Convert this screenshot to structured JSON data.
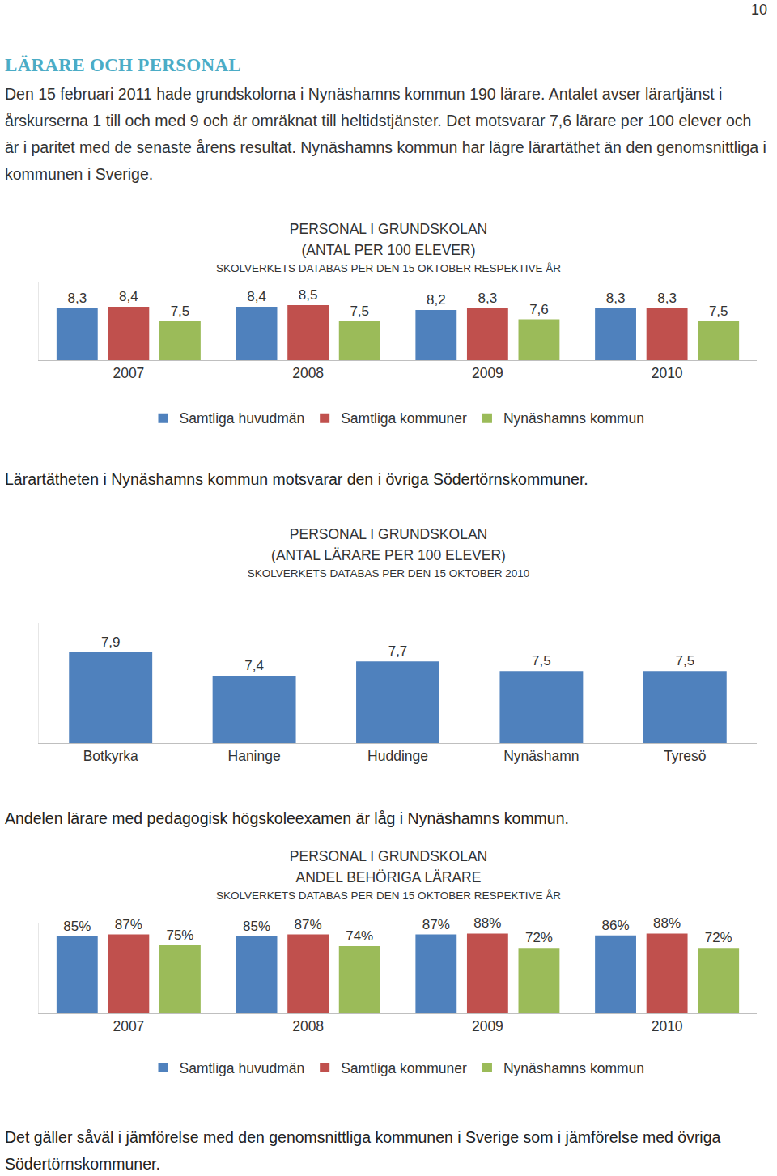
{
  "page_number": "10",
  "heading": "LÄRARE OCH PERSONAL",
  "intro": "Den 15 februari 2011 hade grundskolorna i Nynäshamns kommun 190 lärare. Antalet avser lärartjänst i årskurserna 1 till och med 9 och är omräknat till heltidstjänster. Det motsvarar 7,6 lärare per 100 elever och är i paritet med de senaste årens resultat. Nynäshamns kommun har lägre lärartäthet än den genomsnittliga i kommunen i Sverige.",
  "captions": [
    "Lärartätheten i Nynäshamns kommun motsvarar den i övriga Södertörnskommuner.",
    "Andelen lärare med pedagogisk högskoleexamen är låg i Nynäshamns kommun.",
    "Det gäller såväl i jämförelse med den genomsnittliga kommunen i Sverige som i jämförelse med övriga Södertörnskommuner."
  ],
  "chart_data": [
    {
      "type": "bar",
      "title": "PERSONAL I GRUNDSKOLAN",
      "subtitle": "(ANTAL PER 100 ELEVER)",
      "source": "SKOLVERKETS DATABAS PER DEN 15 OKTOBER RESPEKTIVE ÅR",
      "categories": [
        "2007",
        "2008",
        "2009",
        "2010"
      ],
      "series": [
        {
          "name": "Samtliga huvudmän",
          "color": "#4f81bd",
          "values": [
            8.3,
            8.4,
            8.2,
            8.3
          ],
          "value_labels": [
            "8,3",
            "8,4",
            "8,2",
            "8,3"
          ]
        },
        {
          "name": "Samtliga kommuner",
          "color": "#c0504d",
          "values": [
            8.4,
            8.5,
            8.3,
            8.3
          ],
          "value_labels": [
            "8,4",
            "8,5",
            "8,3",
            "8,3"
          ]
        },
        {
          "name": "Nynäshamns kommun",
          "color": "#9bbb59",
          "values": [
            7.5,
            7.5,
            7.6,
            7.5
          ],
          "value_labels": [
            "7,5",
            "7,5",
            "7,6",
            "7,5"
          ]
        }
      ],
      "ylim": [
        5,
        10
      ],
      "yticks": [],
      "grid": false,
      "legend": "bottom",
      "data_labels": true,
      "tick_labels": "x"
    },
    {
      "type": "bar",
      "title": "PERSONAL I GRUNDSKOLAN",
      "subtitle": "(ANTAL LÄRARE PER 100 ELEVER)",
      "source": "SKOLVERKETS DATABAS PER DEN 15 OKTOBER 2010",
      "categories": [
        "Botkyrka",
        "Haninge",
        "Huddinge",
        "Nynäshamn",
        "Tyresö"
      ],
      "values": [
        7.9,
        7.4,
        7.7,
        7.5,
        7.5
      ],
      "value_labels": [
        "7,9",
        "7,4",
        "7,7",
        "7,5",
        "7,5"
      ],
      "color": "#4f81bd",
      "ylim": [
        6,
        8.5
      ],
      "yticks": [],
      "grid": false,
      "data_labels": true,
      "tick_labels": "x"
    },
    {
      "type": "bar",
      "title": "PERSONAL I GRUNDSKOLAN",
      "subtitle": "ANDEL BEHÖRIGA LÄRARE",
      "source": "SKOLVERKETS DATABAS PER DEN 15 OKTOBER RESPEKTIVE ÅR",
      "categories": [
        "2007",
        "2008",
        "2009",
        "2010"
      ],
      "series": [
        {
          "name": "Samtliga huvudmän",
          "color": "#4f81bd",
          "values": [
            85,
            85,
            87,
            86
          ],
          "value_labels": [
            "85%",
            "85%",
            "87%",
            "86%"
          ]
        },
        {
          "name": "Samtliga kommuner",
          "color": "#c0504d",
          "values": [
            87,
            87,
            88,
            88
          ],
          "value_labels": [
            "87%",
            "87%",
            "88%",
            "88%"
          ]
        },
        {
          "name": "Nynäshamns kommun",
          "color": "#9bbb59",
          "values": [
            75,
            74,
            72,
            72
          ],
          "value_labels": [
            "75%",
            "74%",
            "72%",
            "72%"
          ]
        }
      ],
      "ylim": [
        0,
        100
      ],
      "yticks": [],
      "grid": false,
      "legend": "bottom",
      "data_labels": true,
      "tick_labels": "x"
    }
  ]
}
